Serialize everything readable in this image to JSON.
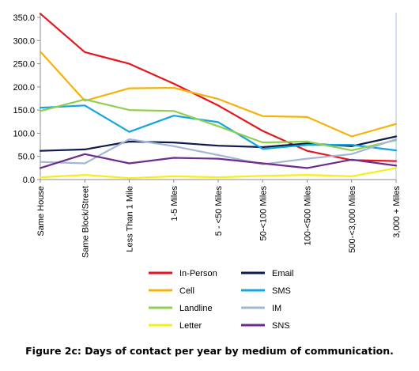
{
  "caption": "Figure 2c: Days of contact per year by medium of communication.",
  "chart_data": {
    "type": "line",
    "title": "",
    "xlabel": "",
    "ylabel": "",
    "ylim": [
      0,
      350
    ],
    "yticks": [
      "0.0",
      "50.0",
      "100.0",
      "150.0",
      "200.0",
      "250.0",
      "300.0",
      "350.0"
    ],
    "grid": false,
    "legend_position": "bottom",
    "categories": [
      "Same House",
      "Same Block/Street",
      "Less Than 1 Mile",
      "1-5 Miles",
      "5 - <50 Miles",
      "50-<100 Miles",
      "100-<500 Miles",
      "500-<3,000 Miles",
      "3,000 + Miles"
    ],
    "series": [
      {
        "name": "In-Person",
        "color": "#e3171d",
        "values": [
          358,
          275,
          250,
          207,
          160,
          105,
          62,
          42,
          40
        ]
      },
      {
        "name": "Email",
        "color": "#0d1c4d",
        "values": [
          62,
          65,
          82,
          80,
          73,
          70,
          78,
          72,
          93
        ]
      },
      {
        "name": "Cell",
        "color": "#f5b20a",
        "values": [
          276,
          170,
          197,
          198,
          174,
          137,
          135,
          93,
          120
        ]
      },
      {
        "name": "SMS",
        "color": "#11a6df",
        "values": [
          155,
          160,
          103,
          138,
          124,
          66,
          75,
          75,
          63
        ]
      },
      {
        "name": "Landline",
        "color": "#8fcf4f",
        "values": [
          148,
          173,
          150,
          148,
          115,
          80,
          82,
          63,
          85
        ]
      },
      {
        "name": "IM",
        "color": "#a3b6d6",
        "values": [
          38,
          35,
          87,
          72,
          53,
          33,
          45,
          55,
          87
        ]
      },
      {
        "name": "Letter",
        "color": "#f4ef1c",
        "values": [
          5,
          10,
          3,
          7,
          5,
          8,
          10,
          7,
          25
        ]
      },
      {
        "name": "SNS",
        "color": "#6e2c8f",
        "values": [
          25,
          55,
          35,
          47,
          45,
          35,
          25,
          43,
          30
        ]
      }
    ]
  }
}
